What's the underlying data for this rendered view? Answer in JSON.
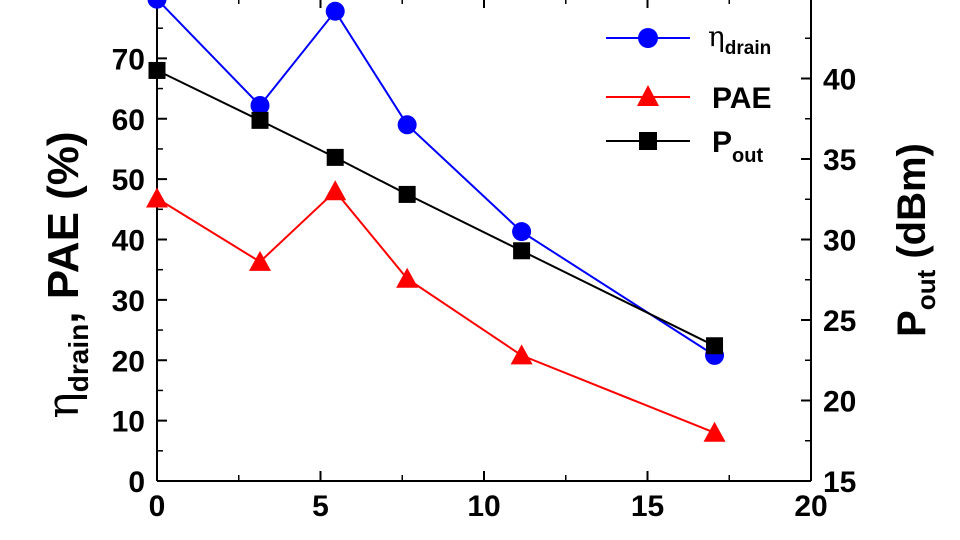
{
  "chart_data": {
    "type": "line",
    "x": [
      0,
      3.15,
      5.45,
      7.65,
      11.15,
      17.05
    ],
    "xlim": [
      0,
      20
    ],
    "ylim_left": [
      0,
      80
    ],
    "ylim_right": [
      15,
      45
    ],
    "x_ticks": [
      0,
      5,
      10,
      15,
      20
    ],
    "x_tick_labels": [
      "0",
      "5",
      "10",
      "15",
      "20"
    ],
    "y_left_ticks": [
      0,
      10,
      20,
      30,
      40,
      50,
      60,
      70
    ],
    "y_left_tick_labels": [
      "0",
      "10",
      "20",
      "30",
      "40",
      "50",
      "60",
      "70"
    ],
    "y_right_ticks": [
      15,
      20,
      25,
      30,
      35,
      40
    ],
    "y_right_tick_labels": [
      "15",
      "20",
      "25",
      "30",
      "35",
      "40"
    ],
    "ylabel_left": {
      "eta": "η",
      "sub": "drain",
      "rest": ", PAE (%)"
    },
    "ylabel_right": {
      "main": "P",
      "sub": "out",
      "rest": " (dBm)"
    },
    "grid": false,
    "legend_position": "top-right",
    "series": [
      {
        "name": "η",
        "name_sub": "drain",
        "axis": "left",
        "color": "#0000ff",
        "marker": "circle",
        "values": [
          79.8,
          62.2,
          77.8,
          59.0,
          41.3,
          20.8
        ]
      },
      {
        "name": "PAE",
        "name_sub": "",
        "axis": "left",
        "color": "#ff0000",
        "marker": "triangle",
        "values": [
          46.8,
          36.3,
          48.0,
          33.5,
          20.8,
          8.0
        ]
      },
      {
        "name": "P",
        "name_sub": "out",
        "axis": "right",
        "color": "#000000",
        "marker": "square",
        "values": [
          40.5,
          37.4,
          35.1,
          32.8,
          29.3,
          23.4
        ]
      }
    ]
  }
}
